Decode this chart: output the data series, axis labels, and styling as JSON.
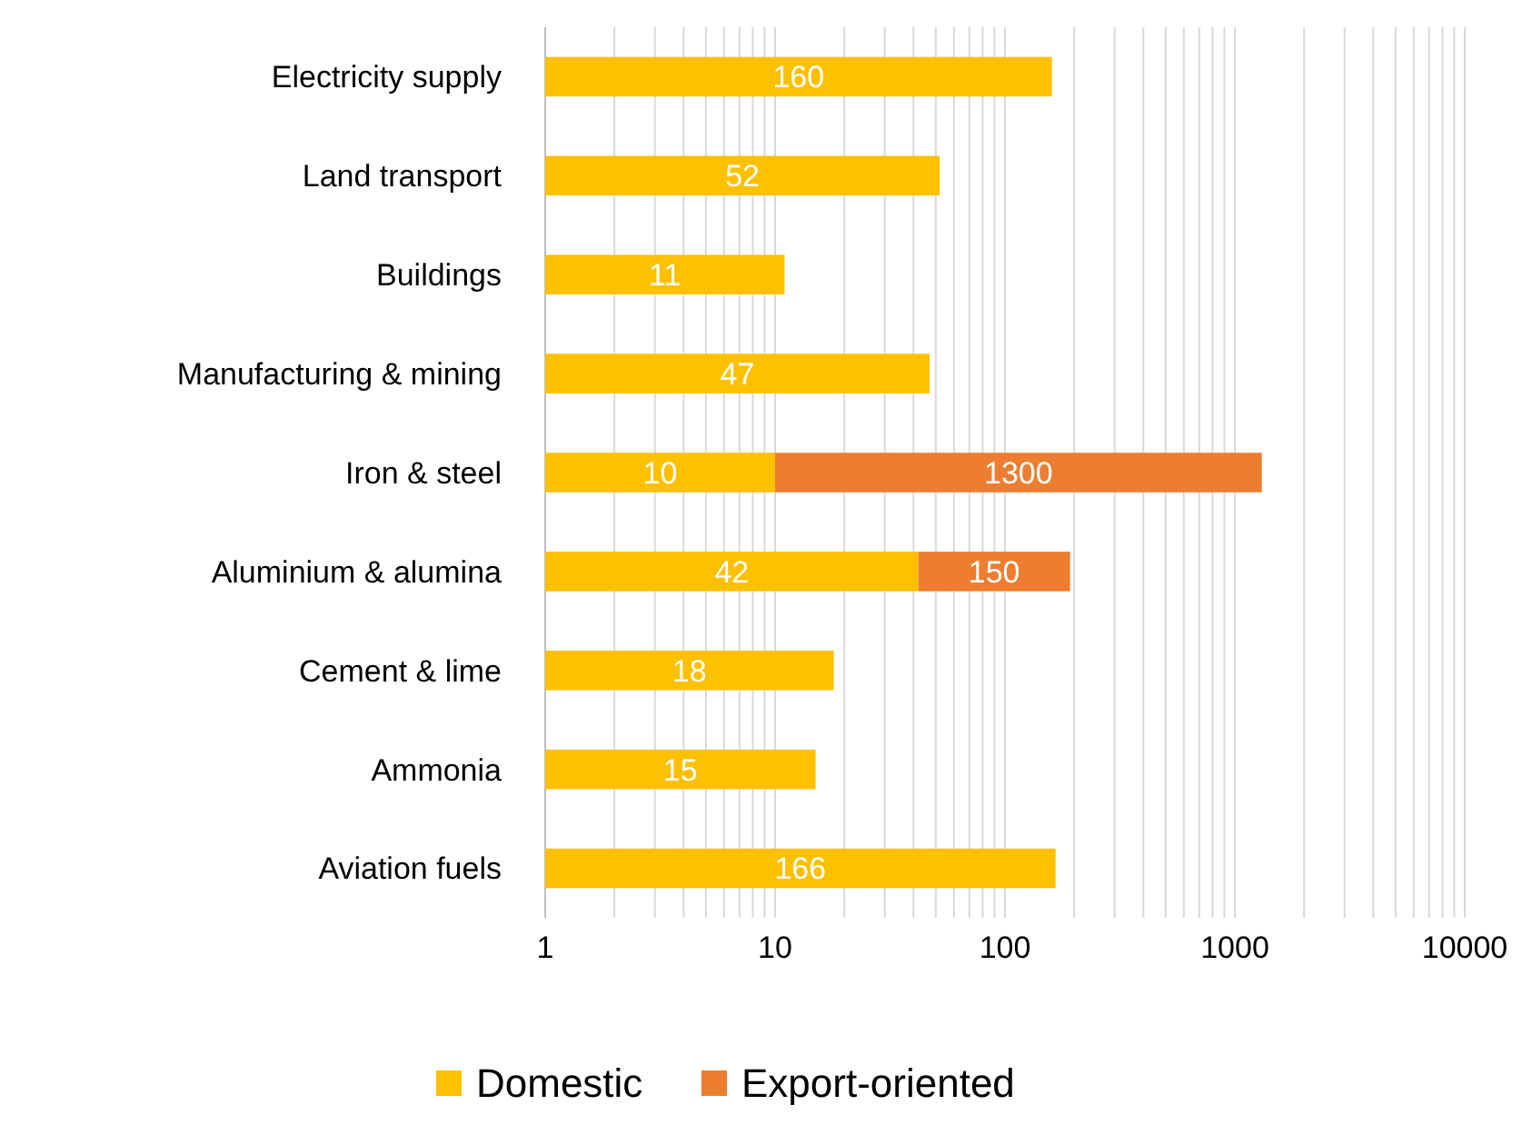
{
  "chart_data": {
    "type": "bar",
    "orientation": "horizontal",
    "stacked": true,
    "log": "x",
    "grid": "x",
    "legend": "bottom",
    "data_labels": true,
    "categories": [
      "Electricity supply",
      "Land transport",
      "Buildings",
      "Manufacturing & mining",
      "Iron & steel",
      "Aluminium & alumina",
      "Cement & lime",
      "Ammonia",
      "Aviation fuels"
    ],
    "series": [
      {
        "name": "Domestic",
        "color": "#ffc000",
        "values": [
          160,
          52,
          11,
          47,
          10,
          42,
          18,
          15,
          166
        ]
      },
      {
        "name": "Export-oriented",
        "color": "#ed7d31",
        "values": [
          null,
          null,
          null,
          null,
          1300,
          150,
          null,
          null,
          null
        ]
      }
    ],
    "xlim": [
      1,
      10000
    ],
    "xticks": [
      1,
      {
        "value": 2,
        "label": null
      },
      {
        "value": 3,
        "label": null
      },
      {
        "value": 4,
        "label": null
      },
      {
        "value": 5,
        "label": null
      },
      {
        "value": 6,
        "label": null
      },
      {
        "value": 7,
        "label": null
      },
      {
        "value": 8,
        "label": null
      },
      {
        "value": 9,
        "label": null
      },
      10,
      {
        "value": 20,
        "label": null
      },
      {
        "value": 30,
        "label": null
      },
      {
        "value": 40,
        "label": null
      },
      {
        "value": 50,
        "label": null
      },
      {
        "value": 60,
        "label": null
      },
      {
        "value": 70,
        "label": null
      },
      {
        "value": 80,
        "label": null
      },
      {
        "value": 90,
        "label": null
      },
      100,
      {
        "value": 200,
        "label": null
      },
      {
        "value": 300,
        "label": null
      },
      {
        "value": 400,
        "label": null
      },
      {
        "value": 500,
        "label": null
      },
      {
        "value": 600,
        "label": null
      },
      {
        "value": 700,
        "label": null
      },
      {
        "value": 800,
        "label": null
      },
      {
        "value": 900,
        "label": null
      },
      1000,
      {
        "value": 2000,
        "label": null
      },
      {
        "value": 3000,
        "label": null
      },
      {
        "value": 4000,
        "label": null
      },
      {
        "value": 5000,
        "label": null
      },
      {
        "value": 6000,
        "label": null
      },
      {
        "value": 7000,
        "label": null
      },
      {
        "value": 8000,
        "label": null
      },
      {
        "value": 9000,
        "label": null
      },
      10000
    ]
  }
}
